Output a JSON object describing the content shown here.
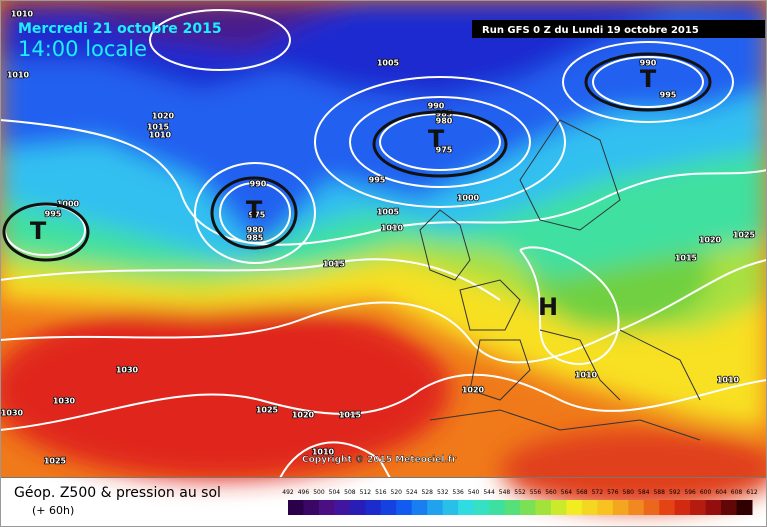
{
  "header": {
    "date": "Mercredi 21 octobre 2015",
    "time": "14:00 locale",
    "run": "Run GFS 0 Z du Lundi 19 octobre 2015"
  },
  "map": {
    "systems": [
      "T",
      "T",
      "T",
      "T",
      "H"
    ],
    "isobar_labels": [
      1010,
      1010,
      1005,
      1020,
      1015,
      1010,
      990,
      985,
      980,
      975,
      995,
      1000,
      1005,
      1010,
      990,
      975,
      980,
      985,
      1000,
      995,
      990,
      995,
      1015,
      1020,
      1025,
      1015,
      1030,
      1030,
      1030,
      1025,
      1020,
      1015,
      1020,
      1010,
      1010,
      1010,
      1025
    ],
    "copyright": "Copyright © 2015 Meteociel.fr"
  },
  "footer": {
    "title": "Géop. Z500 & pression au sol",
    "lead": "(+ 60h)",
    "scale": [
      492,
      496,
      500,
      504,
      508,
      512,
      516,
      520,
      524,
      528,
      532,
      536,
      540,
      544,
      548,
      552,
      556,
      560,
      564,
      568,
      572,
      576,
      580,
      584,
      588,
      592,
      596,
      600,
      604,
      608,
      612
    ]
  }
}
